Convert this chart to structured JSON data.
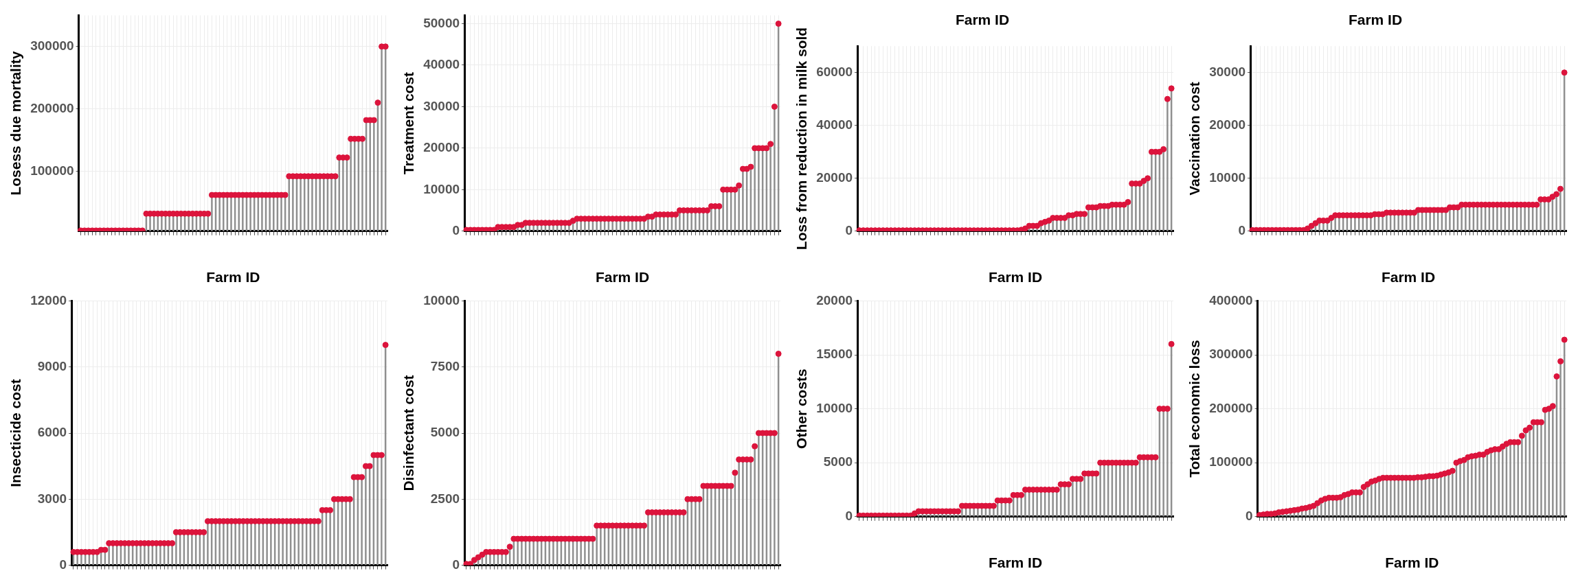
{
  "chart_data": [
    {
      "type": "lollipop",
      "ylabel": "Losess due mortality",
      "xlabel": "Farm ID",
      "tick_labels": "y",
      "grid": true,
      "marker": "circle",
      "ylim": [
        4000,
        350000
      ],
      "yticks": [
        100000,
        200000,
        300000
      ],
      "categories": [
        null,
        null,
        null,
        null,
        null,
        null,
        null,
        null,
        null,
        null,
        null,
        null,
        null,
        null,
        null,
        null,
        null,
        null,
        null,
        null,
        null,
        null,
        null,
        null,
        null,
        null,
        null,
        null,
        null,
        null,
        null,
        null,
        null,
        null,
        null,
        null,
        null,
        null,
        null,
        null,
        null,
        null,
        null,
        null,
        null,
        null,
        null,
        null,
        null,
        null,
        null,
        null,
        null,
        null,
        null,
        null,
        null,
        null,
        null,
        null,
        null,
        null,
        null,
        null,
        null,
        null,
        null,
        null,
        null,
        null,
        null,
        null,
        null,
        null,
        null,
        null,
        null,
        null,
        null,
        null
      ],
      "series": [
        {
          "color": "#dc143c",
          "values": [
            5000,
            5000,
            5000,
            5000,
            5000,
            5000,
            5000,
            5000,
            5000,
            5000,
            5000,
            5000,
            5000,
            5000,
            5000,
            5000,
            5000,
            32000,
            32000,
            32000,
            32000,
            32000,
            32000,
            32000,
            32000,
            32000,
            32000,
            32000,
            32000,
            32000,
            32000,
            32000,
            32000,
            32000,
            62000,
            62000,
            62000,
            62000,
            62000,
            62000,
            62000,
            62000,
            62000,
            62000,
            62000,
            62000,
            62000,
            62000,
            62000,
            62000,
            62000,
            62000,
            62000,
            62000,
            92000,
            92000,
            92000,
            92000,
            92000,
            92000,
            92000,
            92000,
            92000,
            92000,
            92000,
            92000,
            92000,
            122000,
            122000,
            122000,
            152000,
            152000,
            152000,
            152000,
            182000,
            182000,
            182000,
            210000,
            300000,
            300000
          ]
        }
      ]
    },
    {
      "type": "lollipop",
      "ylabel": "Treatment cost",
      "xlabel": "Farm ID",
      "tick_labels": "y",
      "grid": true,
      "marker": "circle",
      "ylim": [
        0,
        52000
      ],
      "yticks": [
        0,
        10000,
        20000,
        30000,
        40000,
        50000
      ],
      "categories": [
        null,
        null,
        null,
        null,
        null,
        null,
        null,
        null,
        null,
        null,
        null,
        null,
        null,
        null,
        null,
        null,
        null,
        null,
        null,
        null,
        null,
        null,
        null,
        null,
        null,
        null,
        null,
        null,
        null,
        null,
        null,
        null,
        null,
        null,
        null,
        null,
        null,
        null,
        null,
        null,
        null,
        null,
        null,
        null,
        null,
        null,
        null,
        null,
        null,
        null,
        null,
        null,
        null,
        null,
        null,
        null,
        null,
        null,
        null,
        null,
        null,
        null,
        null,
        null,
        null,
        null,
        null,
        null,
        null,
        null,
        null,
        null,
        null,
        null,
        null,
        null,
        null,
        null,
        null,
        null
      ],
      "series": [
        {
          "color": "#dc143c",
          "values": [
            300,
            300,
            300,
            300,
            300,
            300,
            300,
            300,
            1000,
            1000,
            1000,
            1000,
            1000,
            1500,
            1500,
            2000,
            2000,
            2000,
            2000,
            2000,
            2000,
            2000,
            2000,
            2000,
            2000,
            2000,
            2000,
            2500,
            3000,
            3000,
            3000,
            3000,
            3000,
            3000,
            3000,
            3000,
            3000,
            3000,
            3000,
            3000,
            3000,
            3000,
            3000,
            3000,
            3000,
            3000,
            3500,
            3500,
            4000,
            4000,
            4000,
            4000,
            4000,
            4000,
            5000,
            5000,
            5000,
            5000,
            5000,
            5000,
            5000,
            5000,
            6000,
            6000,
            6000,
            10000,
            10000,
            10000,
            10000,
            11000,
            15000,
            15000,
            15500,
            20000,
            20000,
            20000,
            20000,
            21000,
            30000,
            50000
          ]
        }
      ]
    },
    {
      "type": "lollipop",
      "title": "Farm ID",
      "ylabel": "Loss from reduction in milk sold",
      "xlabel": "Farm ID",
      "tick_labels": "y",
      "grid": true,
      "marker": "circle",
      "ylim": [
        0,
        70000
      ],
      "yticks": [
        0,
        20000,
        40000,
        60000
      ],
      "categories": [
        null,
        null,
        null,
        null,
        null,
        null,
        null,
        null,
        null,
        null,
        null,
        null,
        null,
        null,
        null,
        null,
        null,
        null,
        null,
        null,
        null,
        null,
        null,
        null,
        null,
        null,
        null,
        null,
        null,
        null,
        null,
        null,
        null,
        null,
        null,
        null,
        null,
        null,
        null,
        null,
        null,
        null,
        null,
        null,
        null,
        null,
        null,
        null,
        null,
        null,
        null,
        null,
        null,
        null,
        null,
        null,
        null,
        null,
        null,
        null,
        null,
        null,
        null,
        null,
        null,
        null,
        null,
        null,
        null,
        null,
        null,
        null,
        null,
        null,
        null,
        null,
        null,
        null,
        null,
        null
      ],
      "series": [
        {
          "color": "#dc143c",
          "values": [
            300,
            300,
            300,
            300,
            300,
            300,
            300,
            300,
            300,
            300,
            300,
            300,
            300,
            300,
            300,
            300,
            300,
            300,
            300,
            300,
            300,
            300,
            300,
            300,
            300,
            300,
            300,
            300,
            300,
            300,
            300,
            300,
            300,
            300,
            300,
            300,
            300,
            300,
            300,
            300,
            300,
            500,
            1000,
            2000,
            2000,
            2000,
            3000,
            3500,
            4000,
            5000,
            5000,
            5000,
            5000,
            6000,
            6000,
            6500,
            6500,
            6500,
            9000,
            9000,
            9000,
            9500,
            9500,
            9500,
            10000,
            10000,
            10000,
            10000,
            11000,
            18000,
            18000,
            18000,
            19000,
            20000,
            30000,
            30000,
            30000,
            31000,
            50000,
            54000
          ]
        }
      ]
    },
    {
      "type": "lollipop",
      "title": "Farm ID",
      "ylabel": "Vaccination cost",
      "xlabel": "Farm ID",
      "tick_labels": "y",
      "grid": true,
      "marker": "circle",
      "ylim": [
        0,
        35000
      ],
      "yticks": [
        0,
        10000,
        20000,
        30000
      ],
      "categories": [
        null,
        null,
        null,
        null,
        null,
        null,
        null,
        null,
        null,
        null,
        null,
        null,
        null,
        null,
        null,
        null,
        null,
        null,
        null,
        null,
        null,
        null,
        null,
        null,
        null,
        null,
        null,
        null,
        null,
        null,
        null,
        null,
        null,
        null,
        null,
        null,
        null,
        null,
        null,
        null,
        null,
        null,
        null,
        null,
        null,
        null,
        null,
        null,
        null,
        null,
        null,
        null,
        null,
        null,
        null,
        null,
        null,
        null,
        null,
        null,
        null,
        null,
        null,
        null,
        null,
        null,
        null,
        null,
        null,
        null,
        null,
        null,
        null,
        null,
        null,
        null,
        null,
        null,
        null,
        null
      ],
      "series": [
        {
          "color": "#dc143c",
          "values": [
            200,
            200,
            200,
            200,
            200,
            200,
            200,
            200,
            200,
            200,
            200,
            200,
            200,
            200,
            500,
            1000,
            1500,
            2000,
            2000,
            2000,
            2500,
            3000,
            3000,
            3000,
            3000,
            3000,
            3000,
            3000,
            3000,
            3000,
            3000,
            3200,
            3200,
            3200,
            3500,
            3500,
            3500,
            3500,
            3500,
            3500,
            3500,
            3500,
            4000,
            4000,
            4000,
            4000,
            4000,
            4000,
            4000,
            4000,
            4500,
            4500,
            4500,
            5000,
            5000,
            5000,
            5000,
            5000,
            5000,
            5000,
            5000,
            5000,
            5000,
            5000,
            5000,
            5000,
            5000,
            5000,
            5000,
            5000,
            5000,
            5000,
            5000,
            6000,
            6000,
            6000,
            6500,
            7000,
            8000,
            30000
          ]
        }
      ]
    },
    {
      "type": "lollipop",
      "ylabel": "Insecticide cost",
      "tick_labels": "y",
      "grid": true,
      "marker": "circle",
      "ylim": [
        0,
        12000
      ],
      "yticks": [
        0,
        3000,
        6000,
        9000,
        12000
      ],
      "categories": [
        null,
        null,
        null,
        null,
        null,
        null,
        null,
        null,
        null,
        null,
        null,
        null,
        null,
        null,
        null,
        null,
        null,
        null,
        null,
        null,
        null,
        null,
        null,
        null,
        null,
        null,
        null,
        null,
        null,
        null,
        null,
        null,
        null,
        null,
        null,
        null,
        null,
        null,
        null,
        null,
        null,
        null,
        null,
        null,
        null,
        null,
        null,
        null,
        null,
        null,
        null,
        null,
        null,
        null,
        null,
        null,
        null,
        null,
        null,
        null,
        null,
        null,
        null,
        null,
        null,
        null,
        null,
        null,
        null,
        null,
        null,
        null,
        null,
        null,
        null,
        null,
        null,
        null,
        null,
        null
      ],
      "series": [
        {
          "color": "#dc143c",
          "values": [
            600,
            600,
            600,
            600,
            600,
            600,
            600,
            700,
            700,
            1000,
            1000,
            1000,
            1000,
            1000,
            1000,
            1000,
            1000,
            1000,
            1000,
            1000,
            1000,
            1000,
            1000,
            1000,
            1000,
            1000,
            1500,
            1500,
            1500,
            1500,
            1500,
            1500,
            1500,
            1500,
            2000,
            2000,
            2000,
            2000,
            2000,
            2000,
            2000,
            2000,
            2000,
            2000,
            2000,
            2000,
            2000,
            2000,
            2000,
            2000,
            2000,
            2000,
            2000,
            2000,
            2000,
            2000,
            2000,
            2000,
            2000,
            2000,
            2000,
            2000,
            2000,
            2500,
            2500,
            2500,
            3000,
            3000,
            3000,
            3000,
            3000,
            4000,
            4000,
            4000,
            4500,
            4500,
            5000,
            5000,
            5000,
            10000
          ]
        }
      ]
    },
    {
      "type": "lollipop",
      "ylabel": "Disinfectant cost",
      "tick_labels": "y",
      "grid": true,
      "marker": "circle",
      "ylim": [
        0,
        10000
      ],
      "yticks": [
        0,
        2500,
        5000,
        7500,
        10000
      ],
      "categories": [
        null,
        null,
        null,
        null,
        null,
        null,
        null,
        null,
        null,
        null,
        null,
        null,
        null,
        null,
        null,
        null,
        null,
        null,
        null,
        null,
        null,
        null,
        null,
        null,
        null,
        null,
        null,
        null,
        null,
        null,
        null,
        null,
        null,
        null,
        null,
        null,
        null,
        null,
        null,
        null,
        null,
        null,
        null,
        null,
        null,
        null,
        null,
        null,
        null,
        null,
        null,
        null,
        null,
        null,
        null,
        null,
        null,
        null,
        null,
        null,
        null,
        null,
        null,
        null,
        null,
        null,
        null,
        null,
        null,
        null,
        null,
        null,
        null,
        null,
        null,
        null,
        null,
        null,
        null,
        null
      ],
      "series": [
        {
          "color": "#dc143c",
          "values": [
            50,
            50,
            200,
            300,
            400,
            500,
            500,
            500,
            500,
            500,
            500,
            700,
            1000,
            1000,
            1000,
            1000,
            1000,
            1000,
            1000,
            1000,
            1000,
            1000,
            1000,
            1000,
            1000,
            1000,
            1000,
            1000,
            1000,
            1000,
            1000,
            1000,
            1000,
            1500,
            1500,
            1500,
            1500,
            1500,
            1500,
            1500,
            1500,
            1500,
            1500,
            1500,
            1500,
            1500,
            2000,
            2000,
            2000,
            2000,
            2000,
            2000,
            2000,
            2000,
            2000,
            2000,
            2500,
            2500,
            2500,
            2500,
            3000,
            3000,
            3000,
            3000,
            3000,
            3000,
            3000,
            3000,
            3500,
            4000,
            4000,
            4000,
            4000,
            4500,
            5000,
            5000,
            5000,
            5000,
            5000,
            8000
          ]
        }
      ]
    },
    {
      "type": "lollipop",
      "ylabel": "Other costs",
      "xlabel": "Farm ID",
      "tick_labels": "y",
      "grid": true,
      "marker": "circle",
      "ylim": [
        0,
        20000
      ],
      "yticks": [
        0,
        5000,
        10000,
        15000,
        20000
      ],
      "categories": [
        null,
        null,
        null,
        null,
        null,
        null,
        null,
        null,
        null,
        null,
        null,
        null,
        null,
        null,
        null,
        null,
        null,
        null,
        null,
        null,
        null,
        null,
        null,
        null,
        null,
        null,
        null,
        null,
        null,
        null,
        null,
        null,
        null,
        null,
        null,
        null,
        null,
        null,
        null,
        null,
        null,
        null,
        null,
        null,
        null,
        null,
        null,
        null,
        null,
        null,
        null,
        null,
        null,
        null,
        null,
        null,
        null,
        null,
        null,
        null,
        null,
        null,
        null,
        null,
        null,
        null,
        null,
        null,
        null,
        null,
        null,
        null,
        null,
        null,
        null,
        null,
        null,
        null,
        null,
        null
      ],
      "series": [
        {
          "color": "#dc143c",
          "values": [
            100,
            100,
            100,
            100,
            100,
            100,
            100,
            100,
            100,
            100,
            100,
            100,
            100,
            100,
            300,
            500,
            500,
            500,
            500,
            500,
            500,
            500,
            500,
            500,
            500,
            500,
            1000,
            1000,
            1000,
            1000,
            1000,
            1000,
            1000,
            1000,
            1000,
            1500,
            1500,
            1500,
            1500,
            2000,
            2000,
            2000,
            2500,
            2500,
            2500,
            2500,
            2500,
            2500,
            2500,
            2500,
            2500,
            3000,
            3000,
            3000,
            3500,
            3500,
            3500,
            4000,
            4000,
            4000,
            4000,
            5000,
            5000,
            5000,
            5000,
            5000,
            5000,
            5000,
            5000,
            5000,
            5000,
            5500,
            5500,
            5500,
            5500,
            5500,
            10000,
            10000,
            10000,
            16000
          ]
        }
      ]
    },
    {
      "type": "lollipop",
      "ylabel": "Total economic loss",
      "xlabel": "Farm ID",
      "tick_labels": "y",
      "grid": true,
      "marker": "circle",
      "ylim": [
        0,
        400000
      ],
      "yticks": [
        0,
        100000,
        200000,
        300000,
        400000
      ],
      "categories": [
        null,
        null,
        null,
        null,
        null,
        null,
        null,
        null,
        null,
        null,
        null,
        null,
        null,
        null,
        null,
        null,
        null,
        null,
        null,
        null,
        null,
        null,
        null,
        null,
        null,
        null,
        null,
        null,
        null,
        null,
        null,
        null,
        null,
        null,
        null,
        null,
        null,
        null,
        null,
        null,
        null,
        null,
        null,
        null,
        null,
        null,
        null,
        null,
        null,
        null,
        null,
        null,
        null,
        null,
        null,
        null,
        null,
        null,
        null,
        null,
        null,
        null,
        null,
        null,
        null,
        null,
        null,
        null,
        null,
        null,
        null,
        null,
        null,
        null,
        null,
        null,
        null,
        null,
        null,
        null
      ],
      "series": [
        {
          "color": "#dc143c",
          "values": [
            3000,
            4000,
            5000,
            5000,
            6000,
            8000,
            9000,
            10000,
            11000,
            12000,
            13000,
            15000,
            16000,
            18000,
            20000,
            25000,
            30000,
            33000,
            35000,
            35000,
            35000,
            36000,
            40000,
            42000,
            45000,
            45000,
            45000,
            55000,
            60000,
            65000,
            67000,
            70000,
            72000,
            72000,
            72000,
            72000,
            72000,
            72000,
            72000,
            72000,
            72000,
            73000,
            73000,
            74000,
            75000,
            75000,
            76000,
            78000,
            80000,
            82000,
            85000,
            100000,
            103000,
            105000,
            110000,
            112000,
            113000,
            115000,
            115000,
            120000,
            123000,
            125000,
            125000,
            130000,
            135000,
            138000,
            138000,
            138000,
            150000,
            160000,
            165000,
            175000,
            175000,
            175000,
            198000,
            200000,
            205000,
            260000,
            288000,
            328000
          ]
        }
      ]
    }
  ]
}
